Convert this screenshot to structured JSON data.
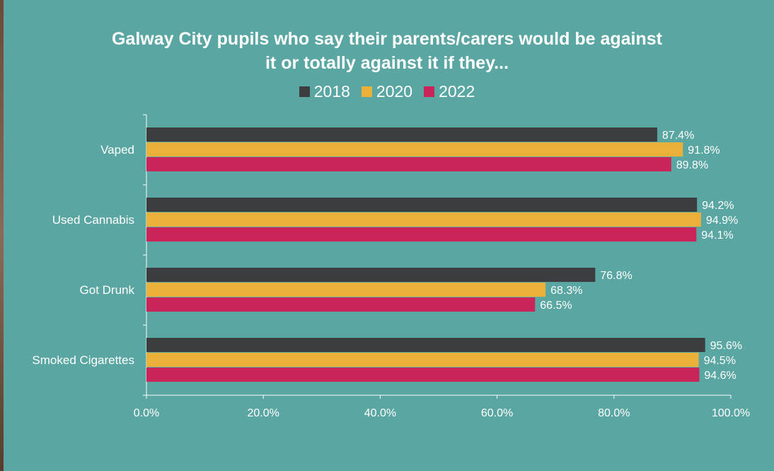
{
  "chart_data": {
    "type": "bar",
    "orientation": "horizontal",
    "title_lines": [
      "Galway City pupils who say their parents/carers would be against",
      "it or totally against it if they..."
    ],
    "categories": [
      "Vaped",
      "Used Cannabis",
      "Got Drunk",
      "Smoked Cigarettes"
    ],
    "series": [
      {
        "name": "2018",
        "color": "#3c3d3f",
        "values": [
          87.4,
          94.2,
          76.8,
          95.6
        ],
        "labels": [
          "87.4%",
          "94.2%",
          "76.8%",
          "95.6%"
        ]
      },
      {
        "name": "2020",
        "color": "#ebb03a",
        "values": [
          91.8,
          94.9,
          68.3,
          94.5
        ],
        "labels": [
          "91.8%",
          "94.9%",
          "68.3%",
          "94.5%"
        ]
      },
      {
        "name": "2022",
        "color": "#cb2459",
        "values": [
          89.8,
          94.1,
          66.5,
          94.6
        ],
        "labels": [
          "89.8%",
          "94.1%",
          "66.5%",
          "94.6%"
        ]
      }
    ],
    "xlim": [
      0,
      100
    ],
    "x_ticks": [
      "0.0%",
      "20.0%",
      "40.0%",
      "60.0%",
      "80.0%",
      "100.0%"
    ],
    "legend_position": "top",
    "grid": false
  }
}
